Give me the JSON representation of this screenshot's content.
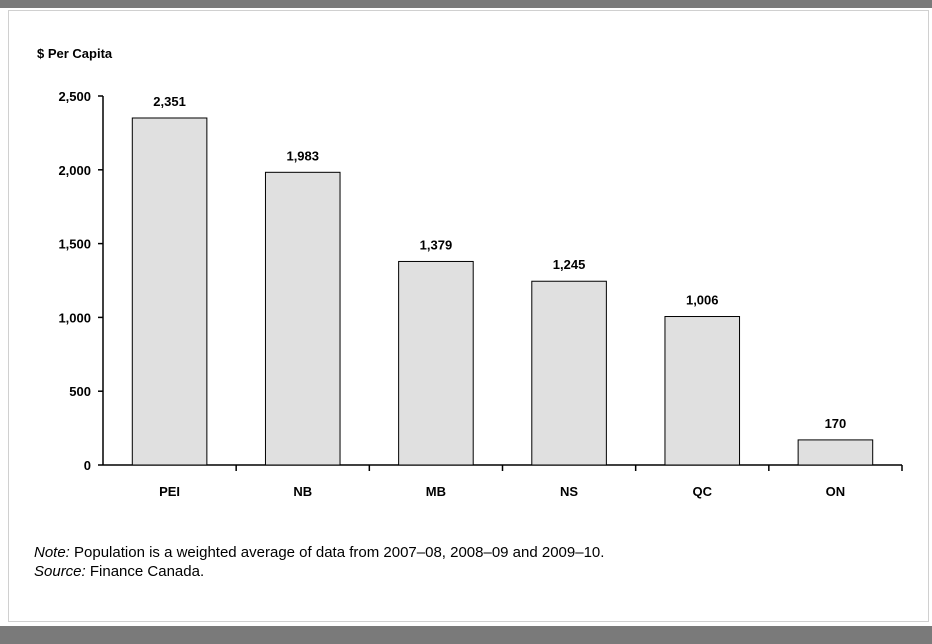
{
  "chart_data": {
    "type": "bar",
    "ylabel": "$ Per Capita",
    "categories": [
      "PEI",
      "NB",
      "MB",
      "NS",
      "QC",
      "ON"
    ],
    "values": [
      2351,
      1983,
      1379,
      1245,
      1006,
      170
    ],
    "data_labels": [
      "2,351",
      "1,983",
      "1,379",
      "1,245",
      "1,006",
      "170"
    ],
    "ylim": [
      0,
      2500
    ],
    "yticks": [
      0,
      500,
      1000,
      1500,
      2000,
      2500
    ],
    "ytick_labels": [
      "0",
      "500",
      "1,000",
      "1,500",
      "2,000",
      "2,500"
    ],
    "grid": false,
    "bar_color": "#e0e0e0"
  },
  "notes": {
    "note_label": "Note:",
    "note_text": " Population is a weighted average of data from 2007–08, 2008–09 and 2009–10.",
    "source_label": "Source:",
    "source_text": " Finance Canada."
  }
}
